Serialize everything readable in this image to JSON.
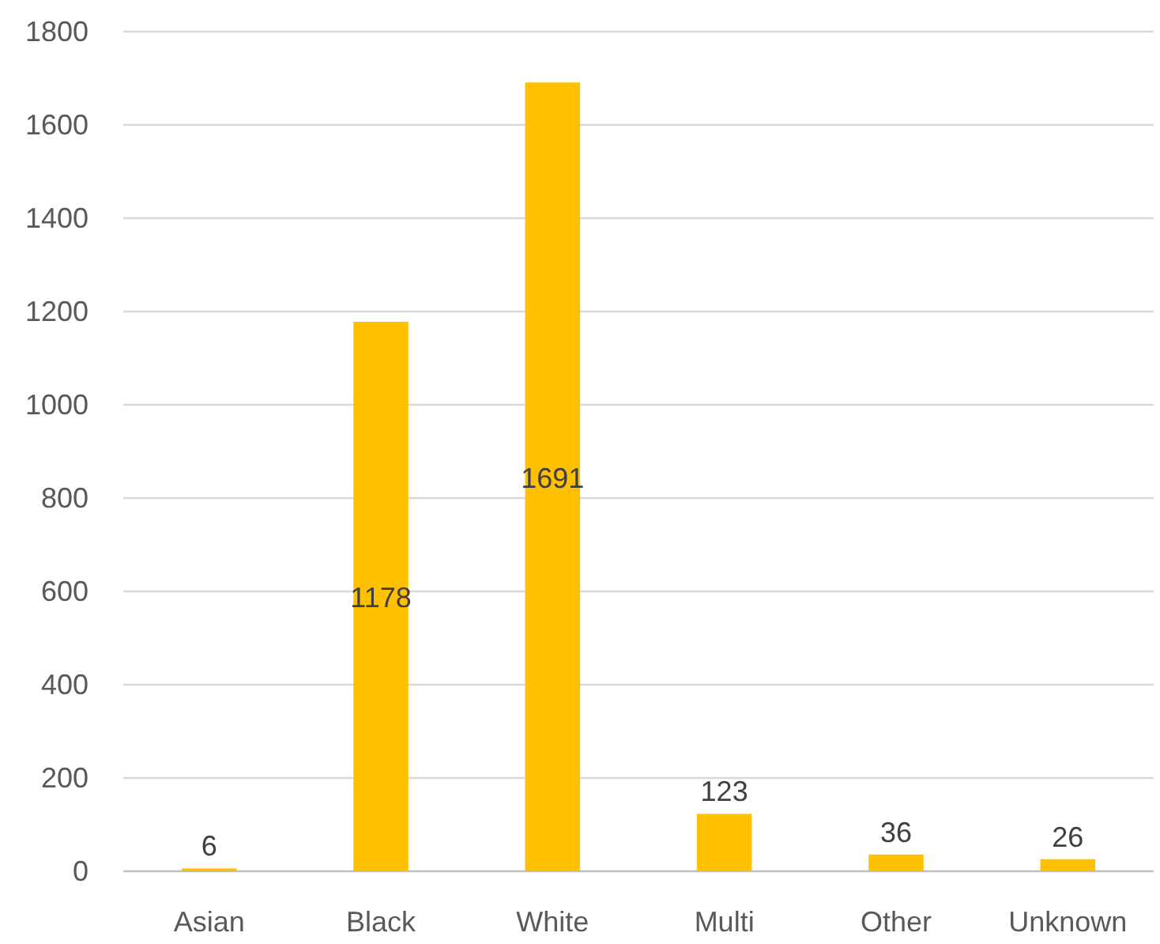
{
  "chart_data": {
    "type": "bar",
    "categories": [
      "Asian",
      "Black",
      "White",
      "Multi",
      "Other",
      "Unknown"
    ],
    "values": [
      6,
      1178,
      1691,
      123,
      36,
      26
    ],
    "color": "#ffc000",
    "ylim": [
      0,
      1800
    ],
    "yticks": [
      0,
      200,
      400,
      600,
      800,
      1000,
      1200,
      1400,
      1600,
      1800
    ],
    "grid": "y",
    "data_labels": true
  }
}
